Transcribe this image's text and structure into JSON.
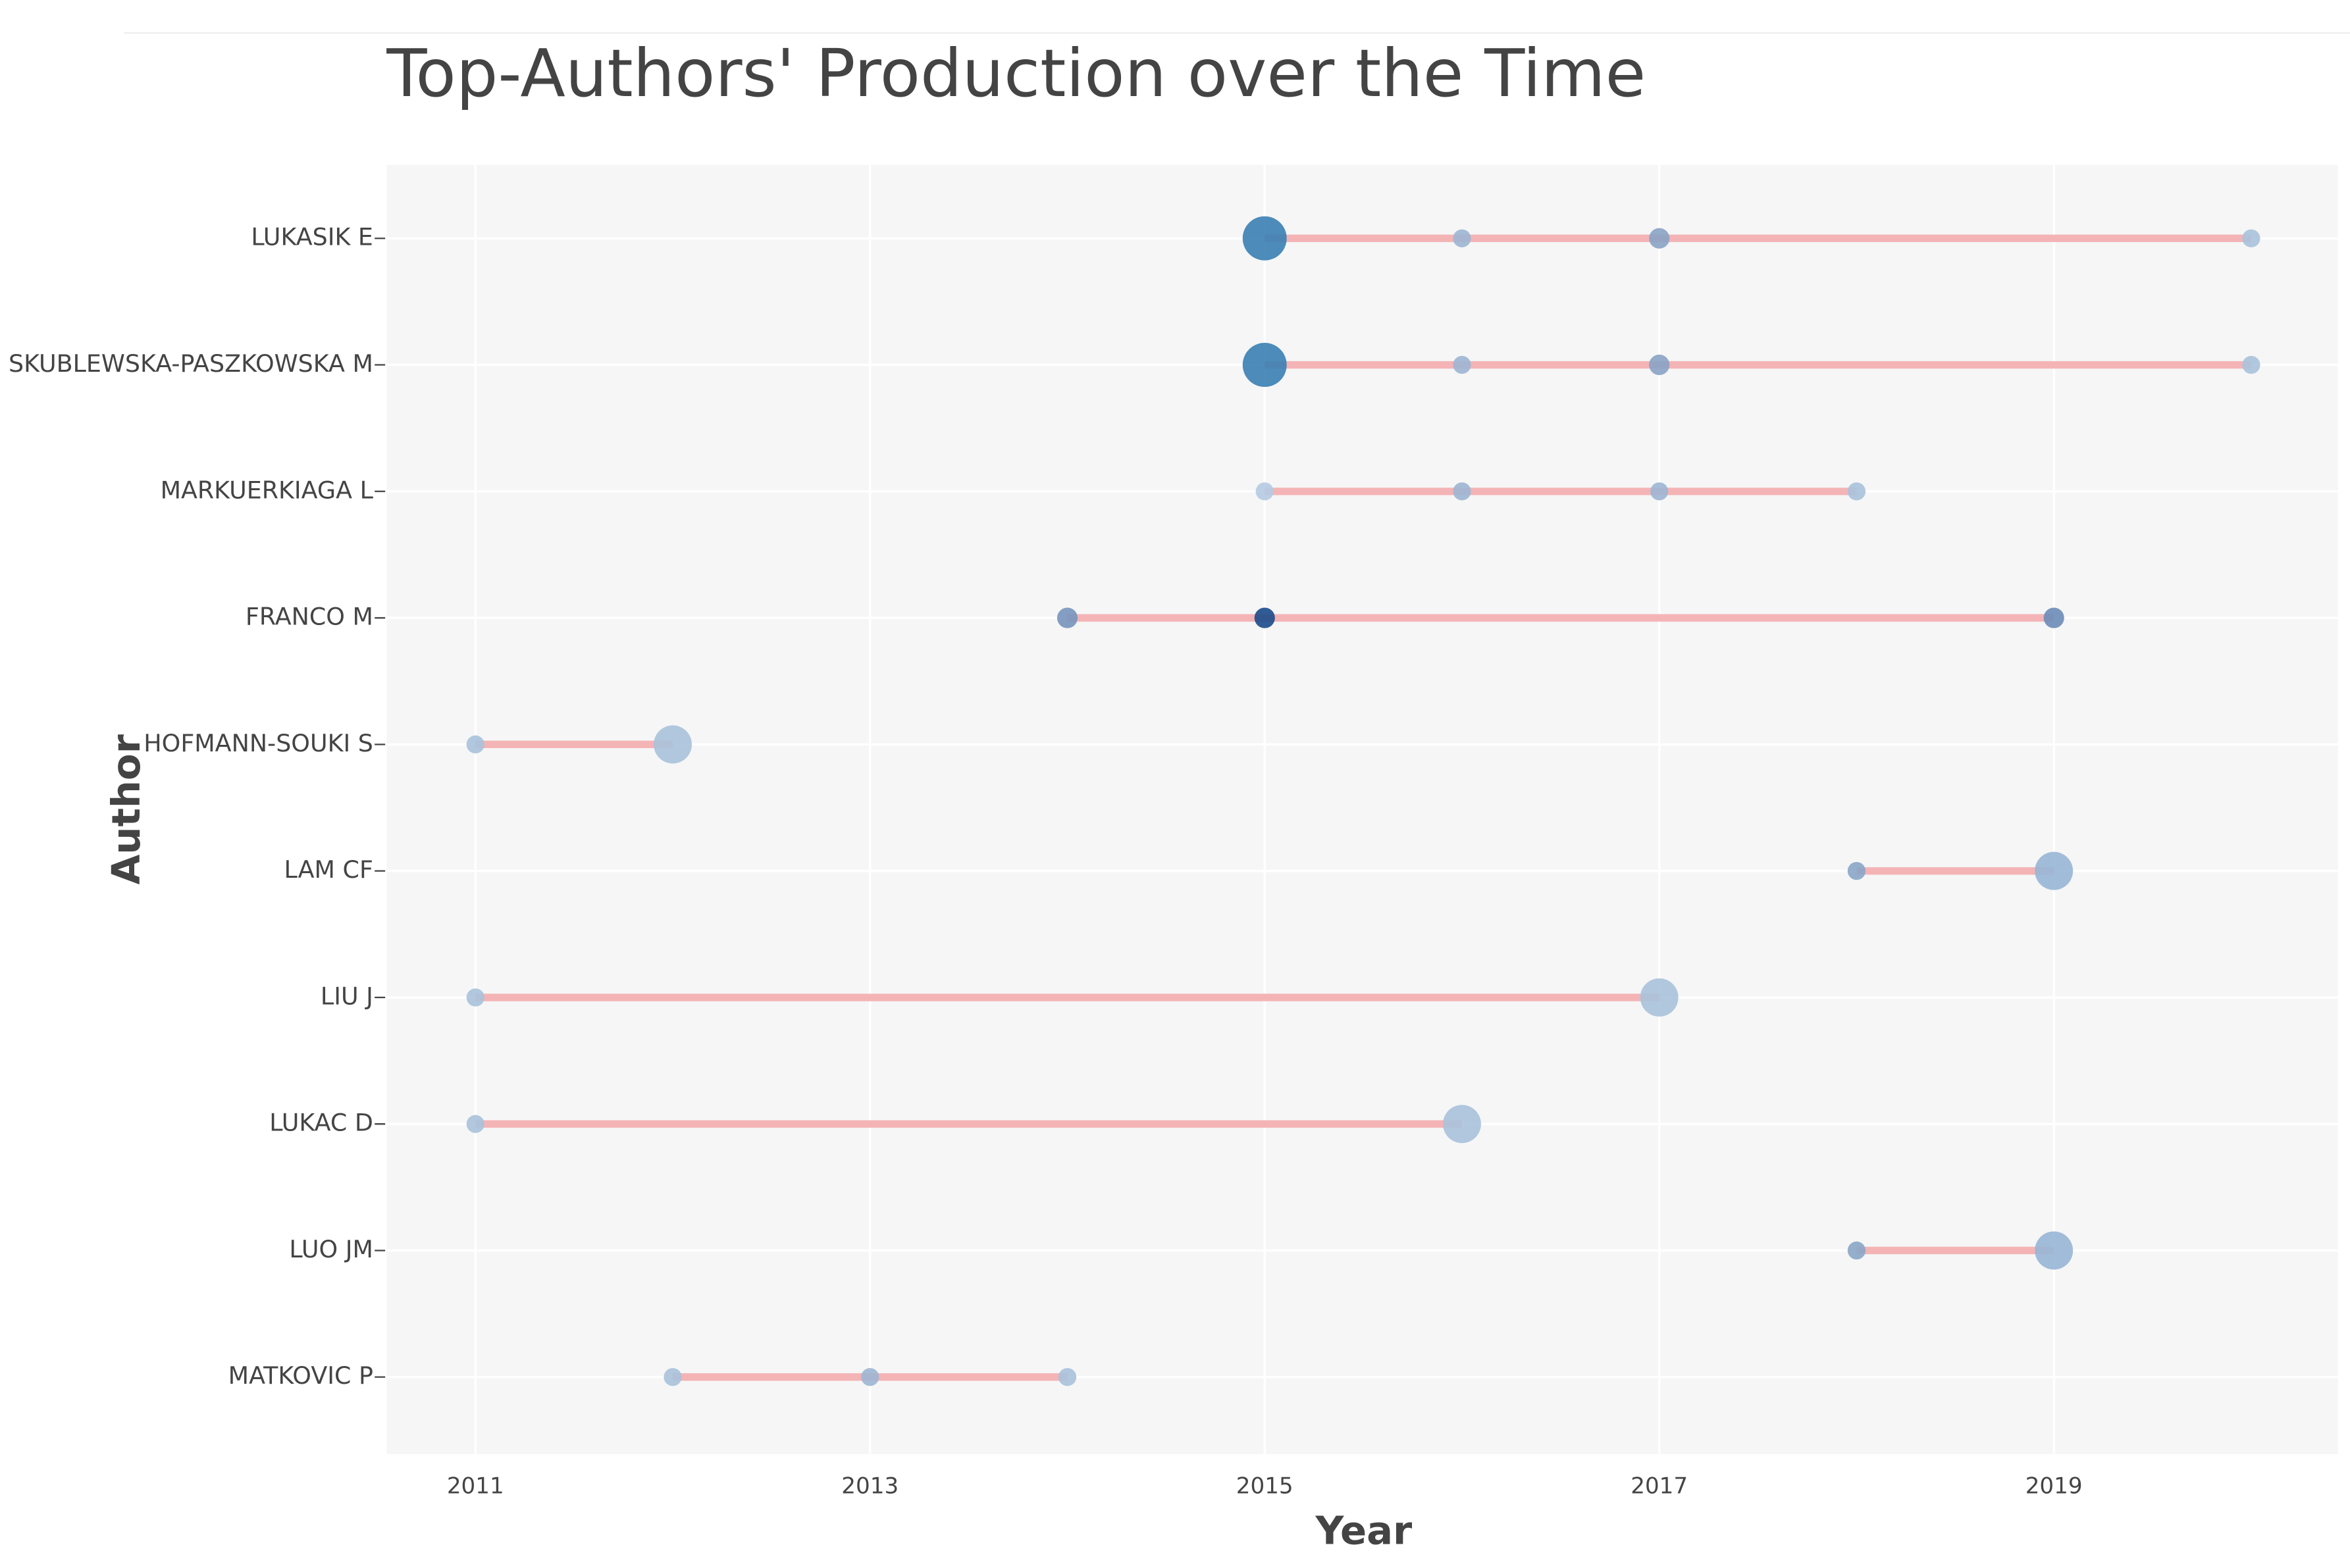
{
  "chart_data": {
    "type": "timeline",
    "title": "Top-Authors' Production over the Time",
    "x_label": "Year",
    "y_label": "Author",
    "xlim": [
      2010.55,
      2020.44
    ],
    "xticks": [
      2011,
      2013,
      2015,
      2017,
      2019
    ],
    "grid": true,
    "line_color": "#f4b4b6",
    "series": [
      {
        "name": "LUKASIK E",
        "x": [
          2015,
          2016,
          2017,
          2020
        ],
        "values": [
          6,
          1,
          1.3,
          1
        ],
        "colors": [
          "#3a7fb4",
          "#9db6d3",
          "#8aa3c4",
          "#a9c2dc"
        ]
      },
      {
        "name": "SKUBLEWSKA-PASZKOWSKA M",
        "x": [
          2015,
          2016,
          2017,
          2020
        ],
        "values": [
          6,
          1,
          1.3,
          1
        ],
        "colors": [
          "#3a7fb4",
          "#9db6d3",
          "#8aa3c4",
          "#a9c2dc"
        ]
      },
      {
        "name": "MARKUERKIAGA L",
        "x": [
          2015,
          2016,
          2017,
          2018
        ],
        "values": [
          1,
          1,
          1,
          1
        ],
        "colors": [
          "#b5cbe2",
          "#9db6d3",
          "#9db6d3",
          "#a9c2dc"
        ]
      },
      {
        "name": "FRANCO M",
        "x": [
          2014,
          2015,
          2019
        ],
        "values": [
          1.3,
          1.3,
          1.3
        ],
        "colors": [
          "#7795bd",
          "#1c4a8a",
          "#6b8cb8"
        ]
      },
      {
        "name": "HOFMANN-SOUKI S",
        "x": [
          2011,
          2012
        ],
        "values": [
          1,
          4.5
        ],
        "colors": [
          "#a9c2dc",
          "#a9c2dc"
        ]
      },
      {
        "name": "LAM CF",
        "x": [
          2018,
          2019
        ],
        "values": [
          1,
          4.5
        ],
        "colors": [
          "#8aa6c8",
          "#97b6d6"
        ]
      },
      {
        "name": "LIU J",
        "x": [
          2011,
          2017
        ],
        "values": [
          1,
          4.5
        ],
        "colors": [
          "#a9c2dc",
          "#a9c2dc"
        ]
      },
      {
        "name": "LUKAC D",
        "x": [
          2011,
          2016
        ],
        "values": [
          1,
          4.5
        ],
        "colors": [
          "#a9c2dc",
          "#a9c2dc"
        ]
      },
      {
        "name": "LUO JM",
        "x": [
          2018,
          2019
        ],
        "values": [
          1,
          4.5
        ],
        "colors": [
          "#8aa6c8",
          "#97b6d6"
        ]
      },
      {
        "name": "MATKOVIC P",
        "x": [
          2012,
          2013,
          2014
        ],
        "values": [
          1,
          1,
          1
        ],
        "colors": [
          "#a9c2dc",
          "#9db6d3",
          "#a9c2dc"
        ]
      }
    ]
  }
}
